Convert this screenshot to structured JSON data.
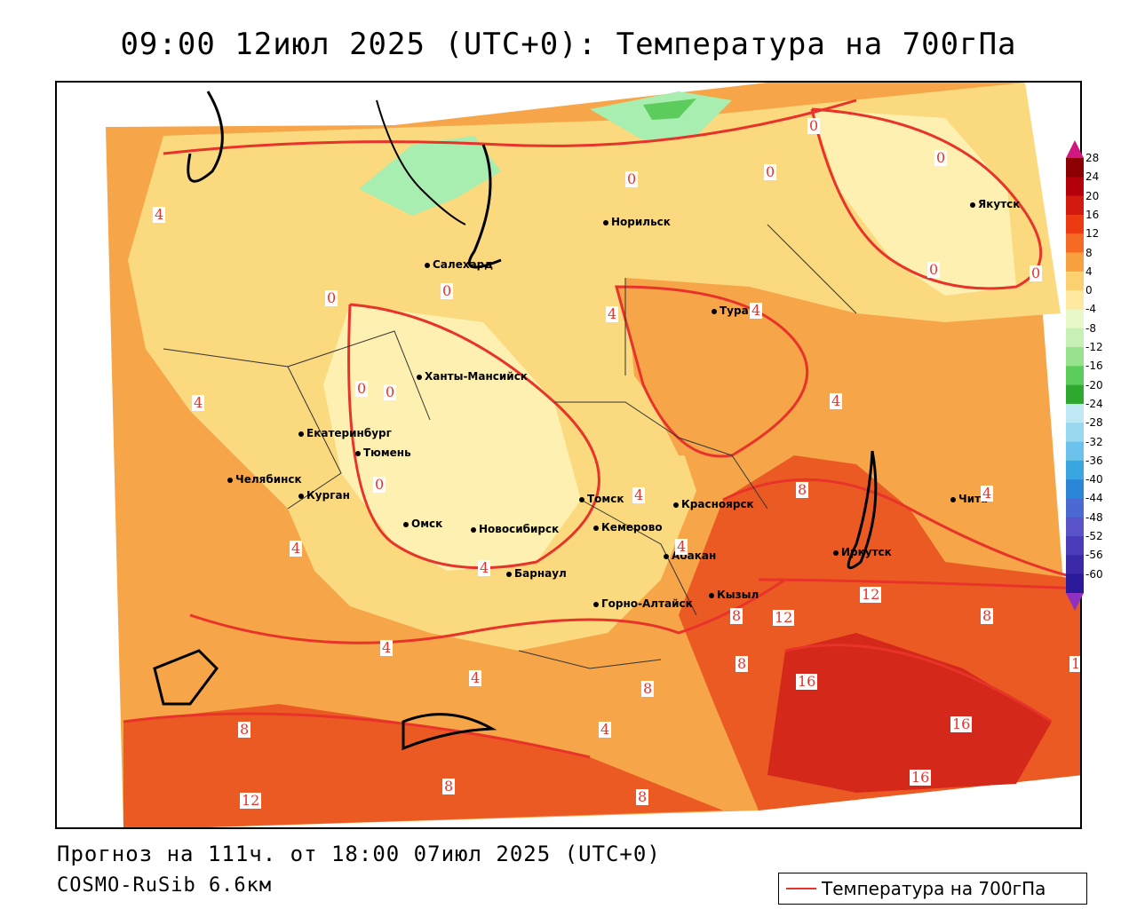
{
  "title": "09:00 12июл 2025 (UTC+0): Температура на 700гПа",
  "forecast_line": "Прогноз на 111ч. от 18:00 07июл 2025 (UTC+0)",
  "model_line": "COSMO-RuSib 6.6км",
  "legend": {
    "label": "Температура на 700гПа",
    "line_color": "#e8332a"
  },
  "cities": [
    {
      "name": "Норильск"
    },
    {
      "name": "Якутск"
    },
    {
      "name": "Салехард"
    },
    {
      "name": "Тура"
    },
    {
      "name": "Ханты-Мансийск"
    },
    {
      "name": "Екатеринбург"
    },
    {
      "name": "Тюмень"
    },
    {
      "name": "Челябинск"
    },
    {
      "name": "Курган"
    },
    {
      "name": "Томск"
    },
    {
      "name": "Красноярск"
    },
    {
      "name": "Омск"
    },
    {
      "name": "Новосибирск"
    },
    {
      "name": "Кемерово"
    },
    {
      "name": "Чита"
    },
    {
      "name": "Абакан"
    },
    {
      "name": "Иркутск"
    },
    {
      "name": "Барнаул"
    },
    {
      "name": "Кызыл"
    },
    {
      "name": "Горно-Алтайск"
    }
  ],
  "contour_labels": [
    "0",
    "0",
    "0",
    "4",
    "0",
    "0",
    "0",
    "0",
    "0",
    "4",
    "4",
    "0",
    "0",
    "4",
    "4",
    "0",
    "4",
    "4",
    "4",
    "8",
    "4",
    "4",
    "8",
    "12",
    "12",
    "8",
    "1",
    "4",
    "4",
    "8",
    "8",
    "16",
    "16",
    "8",
    "4",
    "12",
    "8",
    "8",
    "16"
  ],
  "colorbar": {
    "ticks": [
      "28",
      "24",
      "20",
      "16",
      "12",
      "8",
      "4",
      "0",
      "-4",
      "-8",
      "-12",
      "-16",
      "-20",
      "-24",
      "-28",
      "-32",
      "-36",
      "-40",
      "-44",
      "-48",
      "-52",
      "-56",
      "-60"
    ],
    "colors": [
      "#8b0000",
      "#b3000a",
      "#d41a10",
      "#ec3b12",
      "#f56a24",
      "#f7a040",
      "#fbd070",
      "#fde9a0",
      "#e8f8c8",
      "#c6f0b4",
      "#98e28e",
      "#5ccc5c",
      "#2ea82e",
      "#bfe8f4",
      "#99d8ef",
      "#6cc2ea",
      "#3aa6e0",
      "#2b86d8",
      "#4a6ad2",
      "#5a54c8",
      "#4a3cb8",
      "#3a2aa8",
      "#2a1a98"
    ]
  }
}
